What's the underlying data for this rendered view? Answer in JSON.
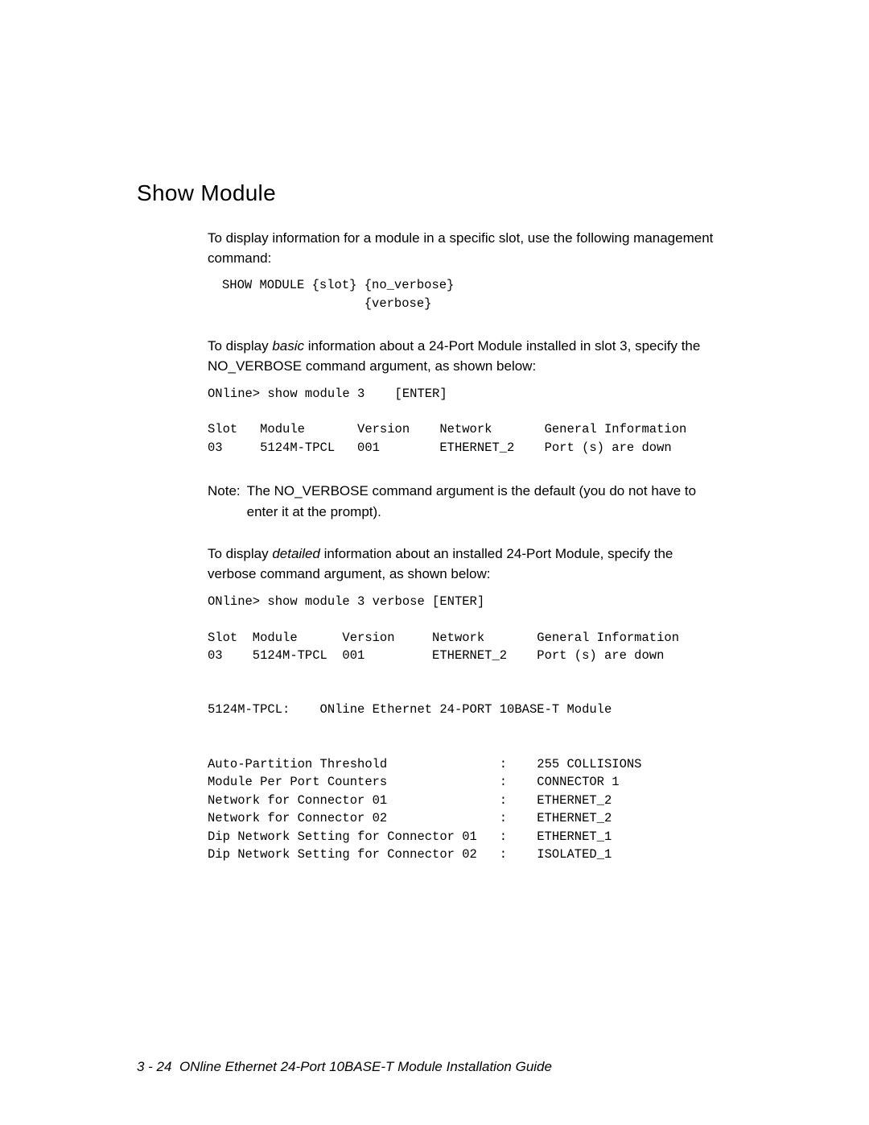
{
  "section": {
    "title": "Show Module"
  },
  "para1": {
    "text": "To display information for a module in a specific slot, use the following management command:"
  },
  "code1": {
    "content": "SHOW MODULE {slot} {no_verbose}\n                   {verbose}"
  },
  "para2": {
    "pre": "To display ",
    "em": "basic",
    "post": " information about a 24-Port Module installed in slot 3, specify the NO_VERBOSE command argument, as shown below:"
  },
  "code2": {
    "content": "ONline> show module 3    [ENTER]\n\nSlot   Module       Version    Network       General Information\n03     5124M-TPCL   001        ETHERNET_2    Port (s) are down"
  },
  "note": {
    "label": "Note:",
    "body": "The NO_VERBOSE command argument is the default (you do not have to enter it at the prompt)."
  },
  "para3": {
    "pre": "To display ",
    "em": "detailed",
    "post": " information about an installed 24-Port Module, specify the verbose command argument, as shown below:"
  },
  "code3": {
    "content": "ONline> show module 3 verbose [ENTER]\n\nSlot  Module      Version     Network       General Information\n03    5124M-TPCL  001         ETHERNET_2    Port (s) are down\n\n\n5124M-TPCL:    ONline Ethernet 24-PORT 10BASE-T Module\n\n\nAuto-Partition Threshold               :    255 COLLISIONS\nModule Per Port Counters               :    CONNECTOR 1\nNetwork for Connector 01               :    ETHERNET_2\nNetwork for Connector 02               :    ETHERNET_2\nDip Network Setting for Connector 01   :    ETHERNET_1\nDip Network Setting for Connector 02   :    ISOLATED_1"
  },
  "footer": {
    "page": "3 - 24",
    "title": "ONline Ethernet 24-Port 10BASE-T Module Installation Guide"
  }
}
